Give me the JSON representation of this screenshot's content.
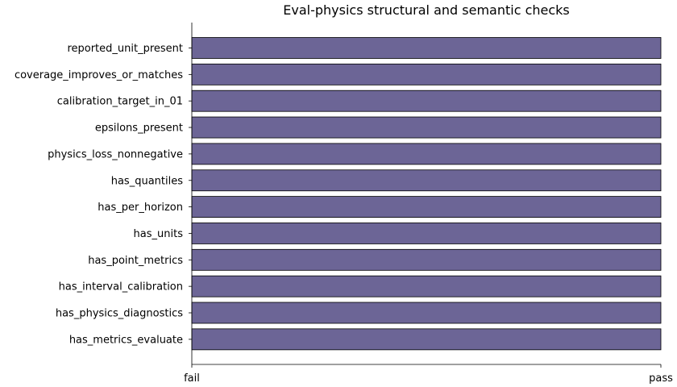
{
  "chart_data": {
    "type": "bar",
    "orientation": "horizontal",
    "title": "Eval-physics structural and semantic checks",
    "xlabel": "",
    "ylabel": "",
    "categories": [
      "reported_unit_present",
      "coverage_improves_or_matches",
      "calibration_target_in_01",
      "epsilons_present",
      "physics_loss_nonnegative",
      "has_quantiles",
      "has_per_horizon",
      "has_units",
      "has_point_metrics",
      "has_interval_calibration",
      "has_physics_diagnostics",
      "has_metrics_evaluate"
    ],
    "values": [
      1,
      1,
      1,
      1,
      1,
      1,
      1,
      1,
      1,
      1,
      1,
      1
    ],
    "xlim": [
      0,
      1
    ],
    "x_ticks": [
      {
        "value": 0,
        "label": "fail"
      },
      {
        "value": 1,
        "label": "pass"
      }
    ],
    "bar_color": "#6c6596",
    "grid": false,
    "legend": "none"
  }
}
